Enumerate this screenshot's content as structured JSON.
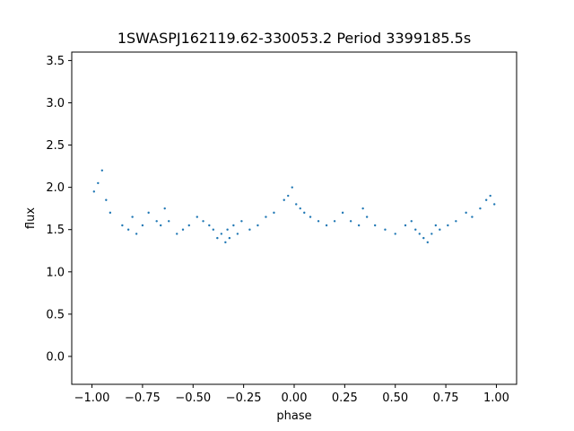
{
  "chart_data": {
    "type": "scatter",
    "title": "1SWASPJ162119.62-330053.2 Period 3399185.5s",
    "xlabel": "phase",
    "ylabel": "flux",
    "xlim": [
      -1.1,
      1.1
    ],
    "ylim": [
      -0.33,
      3.6
    ],
    "x_ticks": [
      -1.0,
      -0.75,
      -0.5,
      -0.25,
      0.0,
      0.25,
      0.5,
      0.75,
      1.0
    ],
    "x_tick_labels": [
      "−1.00",
      "−0.75",
      "−0.50",
      "−0.25",
      "0.00",
      "0.25",
      "0.50",
      "0.75",
      "1.00"
    ],
    "y_ticks": [
      0.0,
      0.5,
      1.0,
      1.5,
      2.0,
      2.5,
      3.0,
      3.5
    ],
    "y_tick_labels": [
      "0.0",
      "0.5",
      "1.0",
      "1.5",
      "2.0",
      "2.5",
      "3.0",
      "3.5"
    ],
    "grid": false,
    "marker_color": "#1f77b4",
    "series": [
      {
        "x": [
          -0.99,
          -0.97,
          -0.95,
          -0.93,
          -0.91,
          -0.85,
          -0.82,
          -0.8,
          -0.78,
          -0.75,
          -0.72,
          -0.68,
          -0.66,
          -0.64,
          -0.62,
          -0.58,
          -0.55,
          -0.52,
          -0.48,
          -0.45,
          -0.42,
          -0.4,
          -0.38,
          -0.36,
          -0.34,
          -0.33,
          -0.32,
          -0.3,
          -0.28,
          -0.26,
          -0.22,
          -0.18,
          -0.14,
          -0.1,
          -0.05,
          -0.03,
          -0.01,
          0.01,
          0.03,
          0.05,
          0.08,
          0.12,
          0.16,
          0.2,
          0.24,
          0.28,
          0.32,
          0.34,
          0.36,
          0.4,
          0.45,
          0.5,
          0.55,
          0.58,
          0.6,
          0.62,
          0.64,
          0.66,
          0.68,
          0.7,
          0.72,
          0.76,
          0.8,
          0.85,
          0.88,
          0.92,
          0.95,
          0.97,
          0.99
        ],
        "y": [
          1.95,
          2.05,
          2.2,
          1.85,
          1.7,
          1.55,
          1.5,
          1.65,
          1.45,
          1.55,
          1.7,
          1.6,
          1.55,
          1.75,
          1.6,
          1.45,
          1.5,
          1.55,
          1.65,
          1.6,
          1.55,
          1.5,
          1.4,
          1.45,
          1.35,
          1.5,
          1.4,
          1.55,
          1.45,
          1.6,
          1.5,
          1.55,
          1.65,
          1.7,
          1.85,
          1.9,
          2.0,
          1.8,
          1.75,
          1.7,
          1.65,
          1.6,
          1.55,
          1.6,
          1.7,
          1.6,
          1.55,
          1.75,
          1.65,
          1.55,
          1.5,
          1.45,
          1.55,
          1.6,
          1.5,
          1.45,
          1.4,
          1.35,
          1.45,
          1.55,
          1.5,
          1.55,
          1.6,
          1.7,
          1.65,
          1.75,
          1.85,
          1.9,
          1.8
        ]
      }
    ]
  }
}
